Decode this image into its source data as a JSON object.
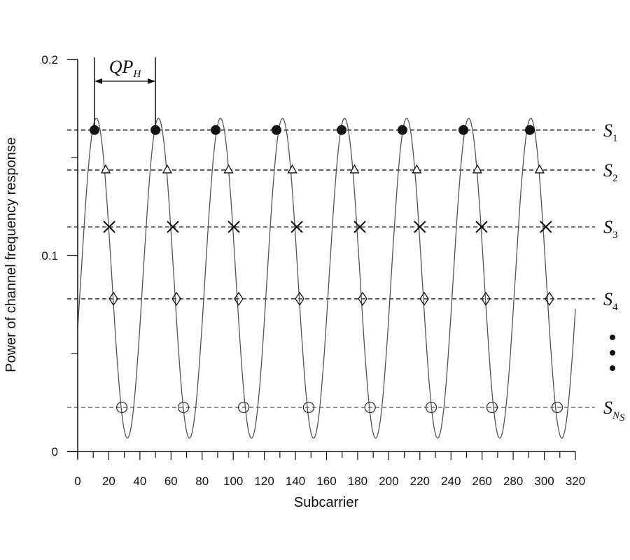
{
  "chart_data": {
    "type": "line",
    "title": "",
    "xlabel": "Subcarrier",
    "ylabel": "Power of channel frequency response",
    "xlim": [
      0,
      320
    ],
    "ylim": [
      0,
      0.2
    ],
    "x_ticks": [
      "0",
      "20",
      "40",
      "60",
      "80",
      "100",
      "120",
      "140",
      "160",
      "180",
      "200",
      "220",
      "240",
      "260",
      "280",
      "300",
      "320"
    ],
    "y_ticks": [
      {
        "value": 0,
        "label": "0"
      },
      {
        "value": 0.1,
        "label": "0.1"
      },
      {
        "value": 0.2,
        "label": "0.2"
      }
    ],
    "y_minor_ticks": [
      0.05,
      0.15
    ],
    "grid": false,
    "curve": {
      "type": "sinusoid",
      "mean": 0.0884,
      "amplitude": 0.0816,
      "period": 39.9,
      "first_peak_x": 12,
      "peak": 0.17,
      "trough": 0.0068
    },
    "curve_color": "#555555",
    "levels": [
      {
        "label": "S",
        "sub": "1",
        "y": 0.164,
        "marker": "filled-circle",
        "x": [
          10.8,
          50,
          88.7,
          127.8,
          169.7,
          208.8,
          248,
          290.7
        ]
      },
      {
        "label": "S",
        "sub": "2",
        "y": 0.1436,
        "marker": "triangle",
        "x": [
          18,
          57.6,
          97,
          138,
          178,
          218,
          257,
          297
        ]
      },
      {
        "label": "S",
        "sub": "3",
        "y": 0.1146,
        "marker": "cross",
        "x": [
          20.3,
          61.2,
          100.4,
          140.9,
          181.4,
          220,
          259.7,
          301
        ]
      },
      {
        "label": "S",
        "sub": "4",
        "y": 0.0779,
        "marker": "diamond",
        "x": [
          23,
          63.5,
          103.5,
          142.7,
          183.2,
          222.8,
          262.4,
          303.3
        ]
      },
      {
        "label": "S",
        "sub": "N",
        "subsub": "S",
        "y": 0.0225,
        "marker": "open-circle",
        "x": [
          28.4,
          68,
          106.7,
          148.5,
          188,
          227.3,
          266.4,
          308.3
        ]
      }
    ],
    "ellipsis": "vertical-dots",
    "annotation": {
      "label": "QP",
      "sub": "H",
      "x_start": 10.8,
      "x_end": 50
    }
  }
}
